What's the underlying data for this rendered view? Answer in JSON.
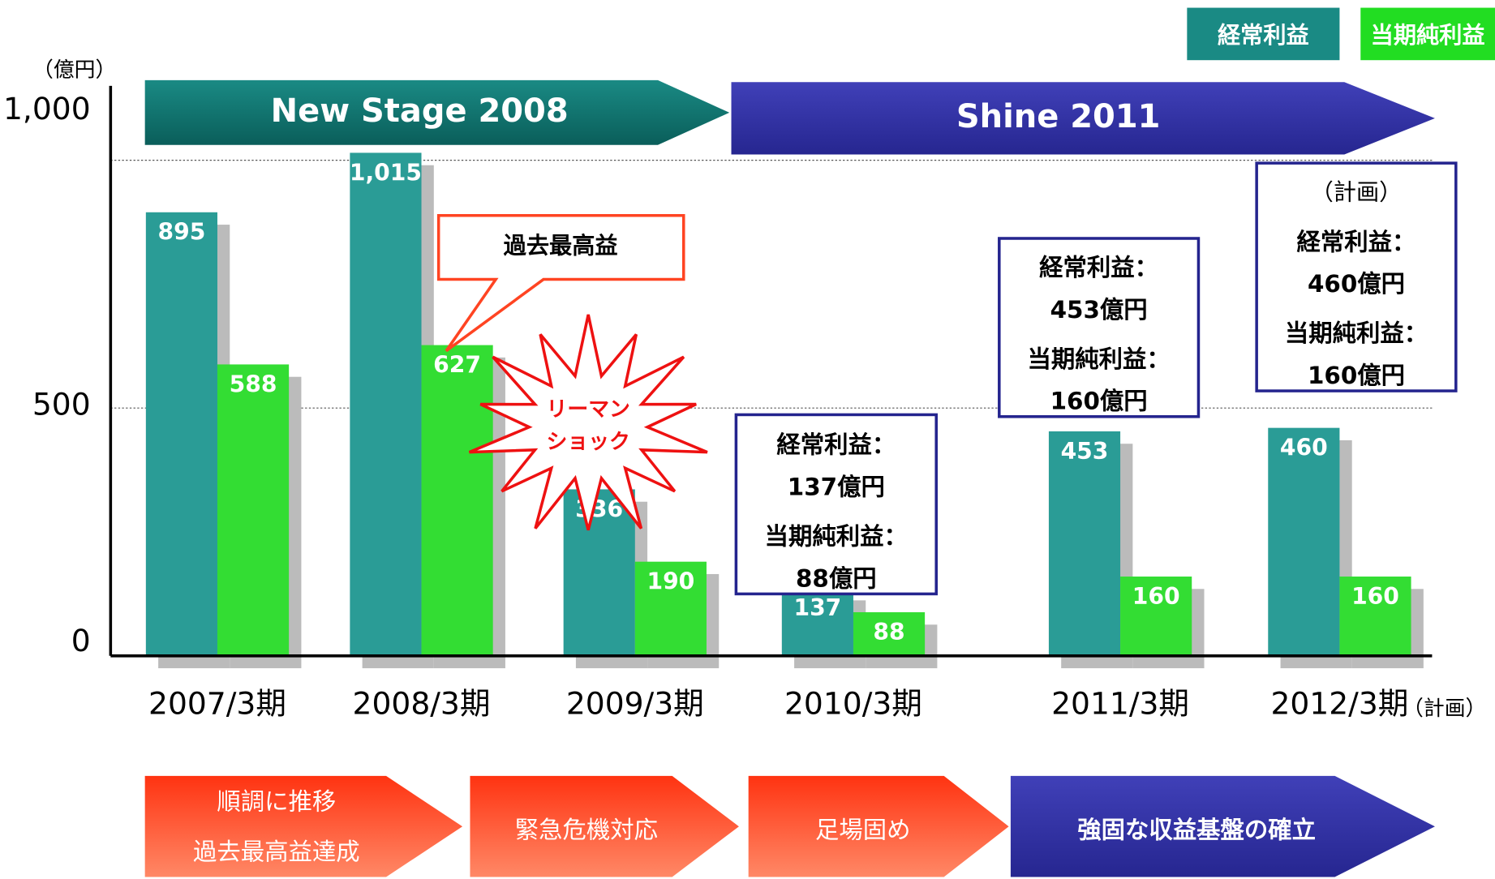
{
  "chart_data": {
    "type": "bar",
    "y_unit": "（億円）",
    "categories": [
      "2007/3期",
      "2008/3期",
      "2009/3期",
      "2010/3期",
      "2011/3期",
      "2012/3期"
    ],
    "category_note": "（計画）",
    "series": [
      {
        "name": "経常利益",
        "color": "#2a9c96",
        "values": [
          895,
          1015,
          336,
          137,
          453,
          460
        ],
        "value_labels": [
          "895",
          "1,015",
          "336",
          "137",
          "453",
          "460"
        ]
      },
      {
        "name": "当期純利益",
        "color": "#33dd33",
        "values": [
          588,
          627,
          190,
          88,
          160,
          160
        ]
      }
    ],
    "ylim": [
      0,
      1150
    ],
    "yticks": [
      0,
      500,
      {
        "value": 1000,
        "label": "1,000"
      }
    ],
    "grid": true,
    "phases": [
      "New Stage 2008",
      "Shine 2011"
    ],
    "callout": "過去最高益",
    "burst": [
      "リーマン",
      "ショック"
    ],
    "boxes": [
      {
        "lines": [
          "経常利益：",
          "137億円",
          "当期純利益：",
          "88億円"
        ]
      },
      {
        "lines": [
          "経常利益：",
          "453億円",
          "当期純利益：",
          "160億円"
        ]
      },
      {
        "lines": [
          "（計画）",
          "経常利益：",
          "460億円",
          "当期純利益：",
          "160億円"
        ]
      }
    ],
    "steps": [
      {
        "lines": [
          "順調に推移",
          "過去最高益達成"
        ]
      },
      {
        "lines": [
          "緊急危機対応"
        ]
      },
      {
        "lines": [
          "足場固め"
        ]
      },
      {
        "lines": [
          "強固な収益基盤の確立"
        ]
      }
    ]
  }
}
